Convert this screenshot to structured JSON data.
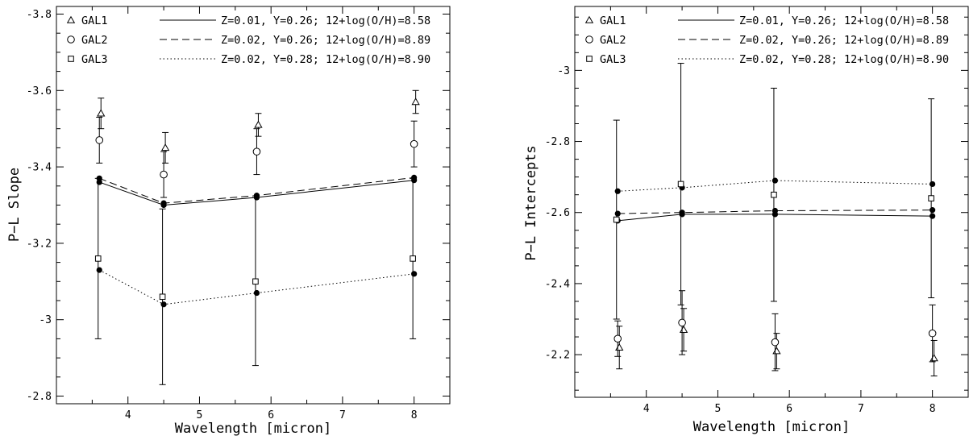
{
  "chart_data": [
    {
      "type": "scatter",
      "xlabel": "Wavelength [micron]",
      "ylabel": "P−L Slope",
      "xlim": [
        3,
        8.5
      ],
      "ylim": [
        -2.78,
        -3.82
      ],
      "inverted_y": true,
      "xticks": [
        4,
        5,
        6,
        7,
        8
      ],
      "yticks": [
        -2.8,
        -3,
        -3.2,
        -3.4,
        -3.6,
        -3.8
      ],
      "ytick_labels": [
        "-2.8",
        "-3",
        "-3.2",
        "-3.4",
        "-3.6",
        "-3.8"
      ],
      "legend_position": "top",
      "legend": [
        {
          "label": "GAL1",
          "marker": "triangle"
        },
        {
          "label": "GAL2",
          "marker": "circle"
        },
        {
          "label": "GAL3",
          "marker": "square"
        }
      ],
      "series": [
        {
          "name": "GAL1",
          "marker": "triangle",
          "x": [
            3.6,
            4.5,
            5.8,
            8.0
          ],
          "y": [
            -3.54,
            -3.45,
            -3.51,
            -3.57
          ],
          "err": [
            0.04,
            0.04,
            0.03,
            0.03
          ]
        },
        {
          "name": "GAL2",
          "marker": "circle",
          "x": [
            3.6,
            4.5,
            5.8,
            8.0
          ],
          "y": [
            -3.47,
            -3.38,
            -3.44,
            -3.46
          ],
          "err": [
            0.06,
            0.06,
            0.06,
            0.06
          ]
        },
        {
          "name": "GAL3",
          "marker": "square",
          "x": [
            3.6,
            4.5,
            5.8,
            8.0
          ],
          "y": [
            -3.16,
            -3.06,
            -3.1,
            -3.16
          ],
          "err": [
            0.21,
            0.23,
            0.22,
            0.21
          ]
        }
      ],
      "models": [
        {
          "name": "Z=0.01, Y=0.26; 12+log(O/H)=8.58",
          "style": "solid",
          "x": [
            3.6,
            4.5,
            5.8,
            8.0
          ],
          "y": [
            -3.36,
            -3.3,
            -3.32,
            -3.365
          ]
        },
        {
          "name": "Z=0.02, Y=0.26; 12+log(O/H)=8.89",
          "style": "dashed",
          "x": [
            3.6,
            4.5,
            5.8,
            8.0
          ],
          "y": [
            -3.37,
            -3.305,
            -3.325,
            -3.372
          ]
        },
        {
          "name": "Z=0.02, Y=0.28; 12+log(O/H)=8.90",
          "style": "dotted",
          "x": [
            3.6,
            4.5,
            5.8,
            8.0
          ],
          "y": [
            -3.13,
            -3.04,
            -3.07,
            -3.12
          ]
        }
      ]
    },
    {
      "type": "scatter",
      "xlabel": "Wavelength [micron]",
      "ylabel": "P−L Intercepts",
      "xlim": [
        3,
        8.5
      ],
      "ylim": [
        -2.08,
        -3.18
      ],
      "inverted_y": true,
      "xticks": [
        4,
        5,
        6,
        7,
        8
      ],
      "yticks": [
        -2.2,
        -2.4,
        -2.6,
        -2.8,
        -3
      ],
      "ytick_labels": [
        "-2.2",
        "-2.4",
        "-2.6",
        "-2.8",
        "-3"
      ],
      "legend_position": "top",
      "legend": [
        {
          "label": "GAL1",
          "marker": "triangle"
        },
        {
          "label": "GAL2",
          "marker": "circle"
        },
        {
          "label": "GAL3",
          "marker": "square"
        }
      ],
      "series": [
        {
          "name": "GAL1",
          "marker": "triangle",
          "x": [
            3.6,
            4.5,
            5.8,
            8.0
          ],
          "y": [
            -2.22,
            -2.27,
            -2.21,
            -2.19
          ],
          "err": [
            0.06,
            0.06,
            0.05,
            0.05
          ]
        },
        {
          "name": "GAL2",
          "marker": "circle",
          "x": [
            3.6,
            4.5,
            5.8,
            8.0
          ],
          "y": [
            -2.245,
            -2.29,
            -2.235,
            -2.26
          ],
          "err": [
            0.05,
            0.09,
            0.08,
            0.08
          ]
        },
        {
          "name": "GAL3",
          "marker": "square",
          "x": [
            3.6,
            4.5,
            5.8,
            8.0
          ],
          "y": [
            -2.58,
            -2.68,
            -2.65,
            -2.64
          ],
          "err": [
            0.28,
            0.34,
            0.3,
            0.28
          ]
        }
      ],
      "models": [
        {
          "name": "Z=0.01, Y=0.26; 12+log(O/H)=8.58",
          "style": "solid",
          "x": [
            3.6,
            4.5,
            5.8,
            8.0
          ],
          "y": [
            -2.577,
            -2.595,
            -2.595,
            -2.59
          ]
        },
        {
          "name": "Z=0.02, Y=0.26; 12+log(O/H)=8.89",
          "style": "dashed",
          "x": [
            3.6,
            4.5,
            5.8,
            8.0
          ],
          "y": [
            -2.597,
            -2.6,
            -2.605,
            -2.607
          ]
        },
        {
          "name": "Z=0.02, Y=0.28; 12+log(O/H)=8.90",
          "style": "dotted",
          "x": [
            3.6,
            4.5,
            5.8,
            8.0
          ],
          "y": [
            -2.66,
            -2.67,
            -2.69,
            -2.68
          ]
        }
      ]
    }
  ]
}
